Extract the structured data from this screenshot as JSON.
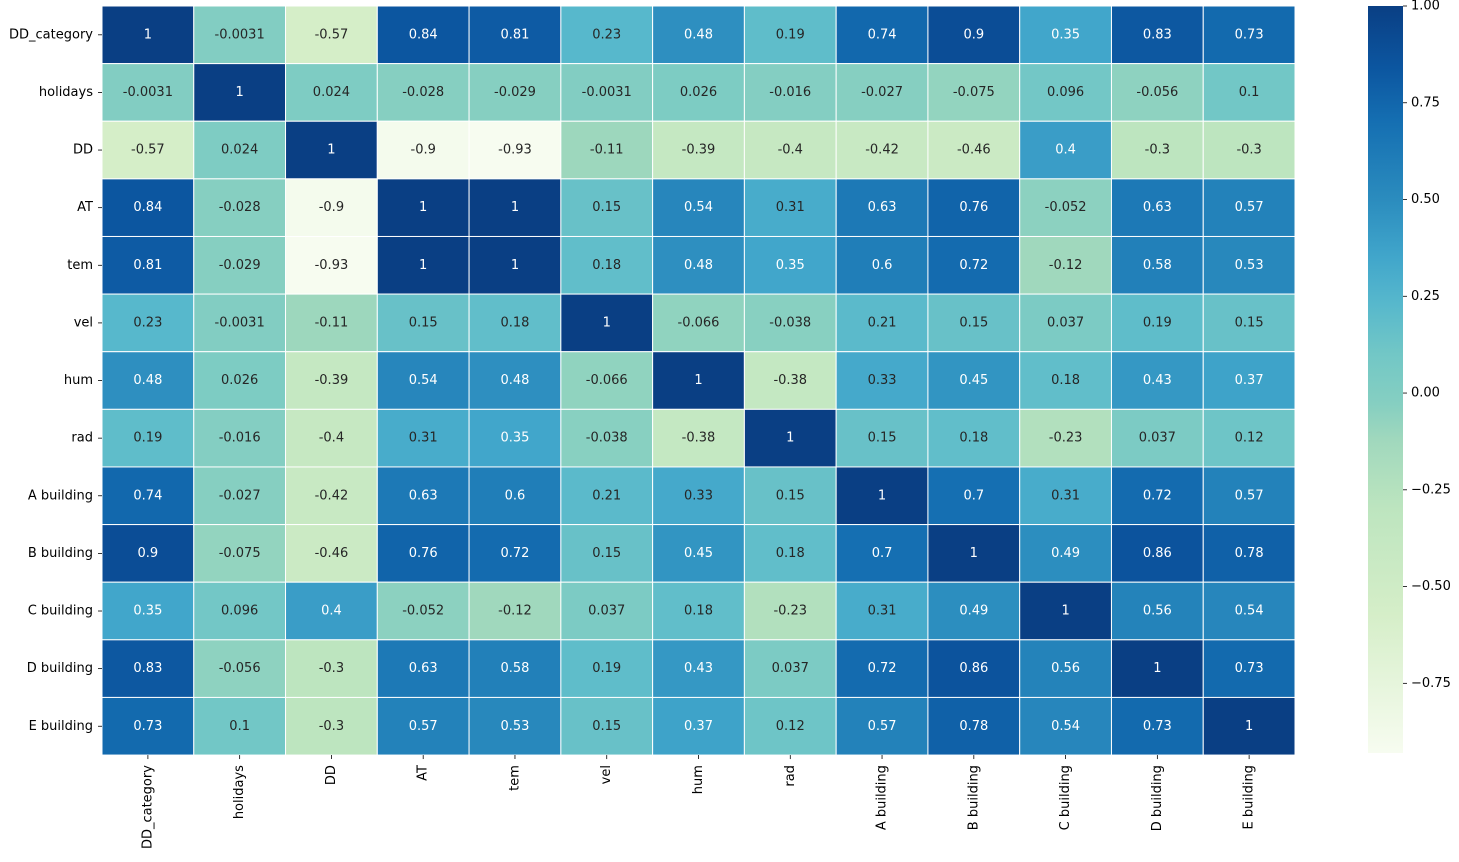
{
  "chart_data": {
    "type": "heatmap",
    "title": "",
    "xlabel": "",
    "ylabel": "",
    "rows": [
      "DD_category",
      "holidays",
      "DD",
      "AT",
      "tem",
      "vel",
      "hum",
      "rad",
      "A building",
      "B building",
      "C building",
      "D building",
      "E building"
    ],
    "columns": [
      "DD_category",
      "holidays",
      "DD",
      "AT",
      "tem",
      "vel",
      "hum",
      "rad",
      "A building",
      "B building",
      "C building",
      "D building",
      "E building"
    ],
    "values": [
      [
        1,
        -0.0031,
        -0.57,
        0.84,
        0.81,
        0.23,
        0.48,
        0.19,
        0.74,
        0.9,
        0.35,
        0.83,
        0.73
      ],
      [
        -0.0031,
        1,
        0.024,
        -0.028,
        -0.029,
        -0.0031,
        0.026,
        -0.016,
        -0.027,
        -0.075,
        0.096,
        -0.056,
        0.1
      ],
      [
        -0.57,
        0.024,
        1,
        -0.9,
        -0.93,
        -0.11,
        -0.39,
        -0.4,
        -0.42,
        -0.46,
        0.4,
        -0.3,
        -0.3
      ],
      [
        0.84,
        -0.028,
        -0.9,
        1,
        1,
        0.15,
        0.54,
        0.31,
        0.63,
        0.76,
        -0.052,
        0.63,
        0.57
      ],
      [
        0.81,
        -0.029,
        -0.93,
        1,
        1,
        0.18,
        0.48,
        0.35,
        0.6,
        0.72,
        -0.12,
        0.58,
        0.53
      ],
      [
        0.23,
        -0.0031,
        -0.11,
        0.15,
        0.18,
        1,
        -0.066,
        -0.038,
        0.21,
        0.15,
        0.037,
        0.19,
        0.15
      ],
      [
        0.48,
        0.026,
        -0.39,
        0.54,
        0.48,
        -0.066,
        1,
        -0.38,
        0.33,
        0.45,
        0.18,
        0.43,
        0.37
      ],
      [
        0.19,
        -0.016,
        -0.4,
        0.31,
        0.35,
        -0.038,
        -0.38,
        1,
        0.15,
        0.18,
        -0.23,
        0.037,
        0.12
      ],
      [
        0.74,
        -0.027,
        -0.42,
        0.63,
        0.6,
        0.21,
        0.33,
        0.15,
        1,
        0.7,
        0.31,
        0.72,
        0.57
      ],
      [
        0.9,
        -0.075,
        -0.46,
        0.76,
        0.72,
        0.15,
        0.45,
        0.18,
        0.7,
        1,
        0.49,
        0.86,
        0.78
      ],
      [
        0.35,
        0.096,
        0.4,
        -0.052,
        -0.12,
        0.037,
        0.18,
        -0.23,
        0.31,
        0.49,
        1,
        0.56,
        0.54
      ],
      [
        0.83,
        -0.056,
        -0.3,
        0.63,
        0.58,
        0.19,
        0.43,
        0.037,
        0.72,
        0.86,
        0.56,
        1,
        0.73
      ],
      [
        0.73,
        0.1,
        -0.3,
        0.57,
        0.53,
        0.15,
        0.37,
        0.12,
        0.57,
        0.78,
        0.54,
        0.73,
        1
      ]
    ],
    "value_labels": [
      [
        "1",
        "-0.0031",
        "-0.57",
        "0.84",
        "0.81",
        "0.23",
        "0.48",
        "0.19",
        "0.74",
        "0.9",
        "0.35",
        "0.83",
        "0.73"
      ],
      [
        "-0.0031",
        "1",
        "0.024",
        "-0.028",
        "-0.029",
        "-0.0031",
        "0.026",
        "-0.016",
        "-0.027",
        "-0.075",
        "0.096",
        "-0.056",
        "0.1"
      ],
      [
        "-0.57",
        "0.024",
        "1",
        "-0.9",
        "-0.93",
        "-0.11",
        "-0.39",
        "-0.4",
        "-0.42",
        "-0.46",
        "0.4",
        "-0.3",
        "-0.3"
      ],
      [
        "0.84",
        "-0.028",
        "-0.9",
        "1",
        "1",
        "0.15",
        "0.54",
        "0.31",
        "0.63",
        "0.76",
        "-0.052",
        "0.63",
        "0.57"
      ],
      [
        "0.81",
        "-0.029",
        "-0.93",
        "1",
        "1",
        "0.18",
        "0.48",
        "0.35",
        "0.6",
        "0.72",
        "-0.12",
        "0.58",
        "0.53"
      ],
      [
        "0.23",
        "-0.0031",
        "-0.11",
        "0.15",
        "0.18",
        "1",
        "-0.066",
        "-0.038",
        "0.21",
        "0.15",
        "0.037",
        "0.19",
        "0.15"
      ],
      [
        "0.48",
        "0.026",
        "-0.39",
        "0.54",
        "0.48",
        "-0.066",
        "1",
        "-0.38",
        "0.33",
        "0.45",
        "0.18",
        "0.43",
        "0.37"
      ],
      [
        "0.19",
        "-0.016",
        "-0.4",
        "0.31",
        "0.35",
        "-0.038",
        "-0.38",
        "1",
        "0.15",
        "0.18",
        "-0.23",
        "0.037",
        "0.12"
      ],
      [
        "0.74",
        "-0.027",
        "-0.42",
        "0.63",
        "0.6",
        "0.21",
        "0.33",
        "0.15",
        "1",
        "0.7",
        "0.31",
        "0.72",
        "0.57"
      ],
      [
        "0.9",
        "-0.075",
        "-0.46",
        "0.76",
        "0.72",
        "0.15",
        "0.45",
        "0.18",
        "0.7",
        "1",
        "0.49",
        "0.86",
        "0.78"
      ],
      [
        "0.35",
        "0.096",
        "0.4",
        "-0.052",
        "-0.12",
        "0.037",
        "0.18",
        "-0.23",
        "0.31",
        "0.49",
        "1",
        "0.56",
        "0.54"
      ],
      [
        "0.83",
        "-0.056",
        "-0.3",
        "0.63",
        "0.58",
        "0.19",
        "0.43",
        "0.037",
        "0.72",
        "0.86",
        "0.56",
        "1",
        "0.73"
      ],
      [
        "0.73",
        "0.1",
        "-0.3",
        "0.57",
        "0.53",
        "0.15",
        "0.37",
        "0.12",
        "0.57",
        "0.78",
        "0.54",
        "0.73",
        "1"
      ]
    ],
    "colormap": "YlGnBu",
    "colorscale": {
      "vmin": -0.93,
      "vmax": 1,
      "stops": [
        {
          "value": -0.93,
          "color": "#f7fcf0"
        },
        {
          "value": -0.57,
          "color": "#d5eec8"
        },
        {
          "value": -0.3,
          "color": "#bde5bf"
        },
        {
          "value": -0.12,
          "color": "#a0d8bd"
        },
        {
          "value": -0.03,
          "color": "#86cfc1"
        },
        {
          "value": 0.1,
          "color": "#72c7c6"
        },
        {
          "value": 0.23,
          "color": "#57b8cc"
        },
        {
          "value": 0.35,
          "color": "#41a6cb"
        },
        {
          "value": 0.5,
          "color": "#2b8cbe"
        },
        {
          "value": 0.7,
          "color": "#156fb2"
        },
        {
          "value": 0.84,
          "color": "#0c56a0"
        },
        {
          "value": 1,
          "color": "#0a3f84"
        }
      ]
    },
    "colorbar": {
      "ticks": [
        1,
        0.75,
        0.5,
        0.25,
        0,
        -0.25,
        -0.5,
        -0.75
      ],
      "tick_labels": [
        "1.00",
        "0.75",
        "0.50",
        "0.25",
        "0.00",
        "−0.25",
        "−0.50",
        "−0.75"
      ]
    },
    "annotation_colors": {
      "light": "#ffffff",
      "dark": "#262626"
    },
    "grid": true,
    "legend": "right"
  }
}
